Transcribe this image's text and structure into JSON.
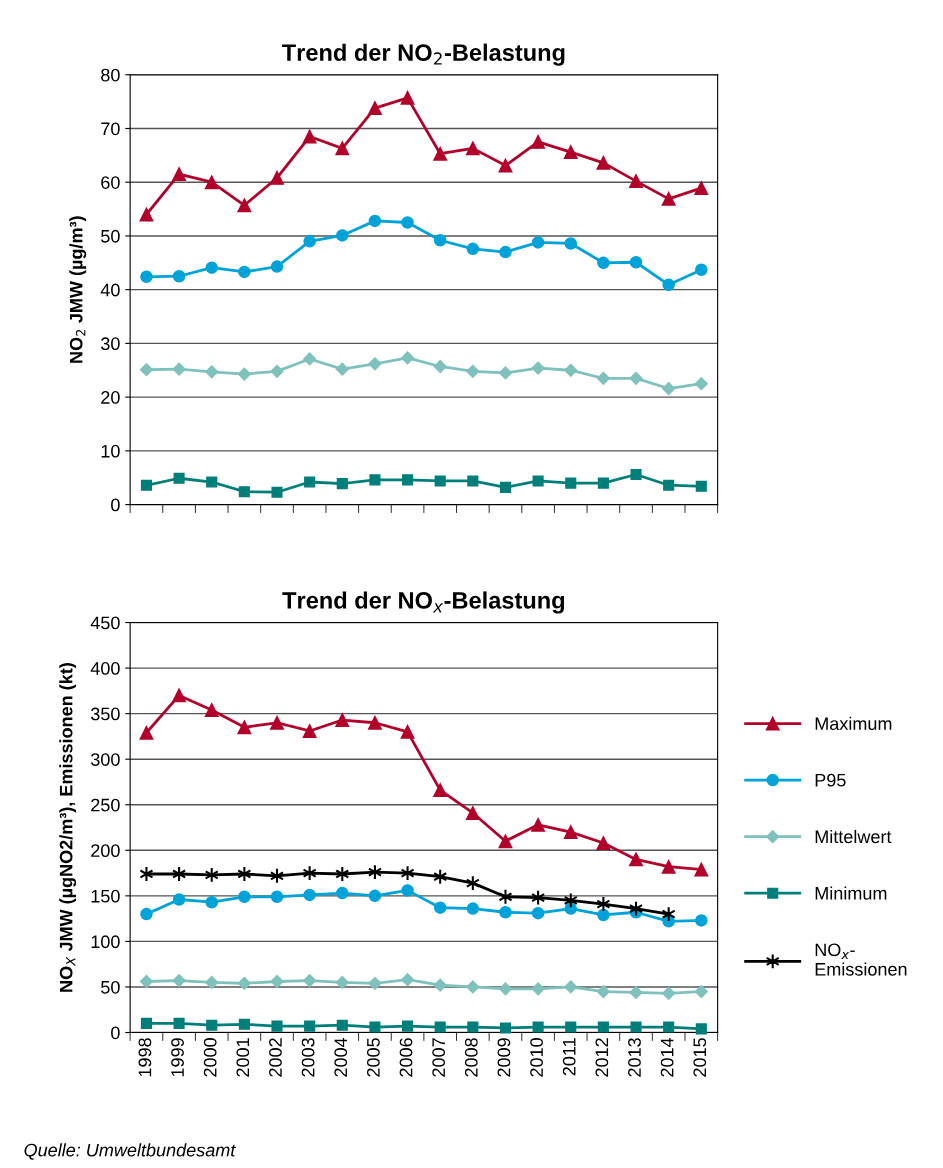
{
  "chart_data": [
    {
      "type": "line",
      "title": "Trend der NO$_{2}$-Belastung",
      "ylabel": "NO$_{2}$ JMW (µg/m³)",
      "categories": [
        "1998",
        "1999",
        "2000",
        "2001",
        "2002",
        "2003",
        "2004",
        "2005",
        "2006",
        "2007",
        "2008",
        "2009",
        "2010",
        "2011",
        "2012",
        "2013",
        "2014",
        "2015"
      ],
      "ylim": [
        0,
        80
      ],
      "yticks": [
        0,
        10,
        20,
        30,
        40,
        50,
        60,
        70,
        80
      ],
      "grid": "y",
      "tick_labels": "y",
      "legend": false,
      "series": [
        {
          "color": "#b2002a",
          "marker": "triangle",
          "values": [
            54,
            61.5,
            60,
            55.7,
            60.8,
            68.5,
            66.3,
            73.8,
            75.7,
            65.3,
            66.3,
            63.1,
            67.5,
            65.6,
            63.6,
            60.2,
            56.9,
            58.9
          ]
        },
        {
          "color": "#00a3d9",
          "marker": "circle",
          "values": [
            42.4,
            42.5,
            44.1,
            43.3,
            44.3,
            49.0,
            50.1,
            52.8,
            52.5,
            49.2,
            47.6,
            47.0,
            48.8,
            48.6,
            45.0,
            45.1,
            40.9,
            43.7
          ]
        },
        {
          "color": "#7fc1bd",
          "marker": "diamond",
          "values": [
            25.1,
            25.2,
            24.7,
            24.3,
            24.8,
            27.1,
            25.2,
            26.2,
            27.3,
            25.7,
            24.8,
            24.5,
            25.4,
            25.0,
            23.5,
            23.5,
            21.6,
            22.5
          ]
        },
        {
          "color": "#007f7a",
          "marker": "square",
          "values": [
            3.6,
            4.9,
            4.2,
            2.4,
            2.3,
            4.2,
            3.9,
            4.6,
            4.6,
            4.4,
            4.4,
            3.2,
            4.4,
            4.0,
            4.0,
            5.6,
            3.6,
            3.4
          ]
        }
      ]
    },
    {
      "type": "line",
      "title": "Trend der NO$_{x}$-Belastung",
      "ylabel": "NO$_{X}$ JMW (µgNO2/m³), Emissionen (kt)",
      "categories": [
        "1998",
        "1999",
        "2000",
        "2001",
        "2002",
        "2003",
        "2004",
        "2005",
        "2006",
        "2007",
        "2008",
        "2009",
        "2010",
        "2011",
        "2012",
        "2013",
        "2014",
        "2015"
      ],
      "ylim": [
        0,
        450
      ],
      "yticks": [
        0,
        50,
        100,
        150,
        200,
        250,
        300,
        350,
        400,
        450
      ],
      "grid": "y",
      "legend": "right",
      "annotations": [
        "Quelle: Umweltbundesamt"
      ],
      "series": [
        {
          "name": "Maximum",
          "color": "#b2002a",
          "marker": "triangle",
          "values": [
            329,
            370,
            354,
            335,
            340,
            331,
            343,
            340,
            330,
            266,
            241,
            210,
            228,
            220,
            208,
            190,
            182,
            179
          ]
        },
        {
          "name": "P95",
          "color": "#00a3d9",
          "marker": "circle",
          "values": [
            130,
            146,
            143,
            149,
            149,
            151,
            153,
            150,
            156,
            137,
            136,
            132,
            131,
            136,
            129,
            132,
            122,
            123
          ]
        },
        {
          "name": "Mittelwert",
          "color": "#7fc1bd",
          "marker": "diamond",
          "values": [
            56,
            57,
            55,
            54,
            56,
            57,
            55,
            54,
            58,
            52,
            50,
            48,
            48,
            50,
            45,
            44,
            43,
            45
          ]
        },
        {
          "name": "Minimum",
          "color": "#007f7a",
          "marker": "square",
          "values": [
            10,
            10,
            8,
            9,
            7,
            7,
            8,
            6,
            7,
            6,
            6,
            5,
            6,
            6,
            6,
            6,
            6,
            4
          ]
        },
        {
          "name": "NO$_{x}$-\nEmissionen",
          "color": "#000000",
          "marker": "cross",
          "values": [
            174,
            174,
            173,
            174,
            172,
            175,
            174,
            176,
            175,
            171,
            164,
            149,
            148,
            145,
            141,
            136,
            130,
            null
          ]
        }
      ]
    }
  ]
}
